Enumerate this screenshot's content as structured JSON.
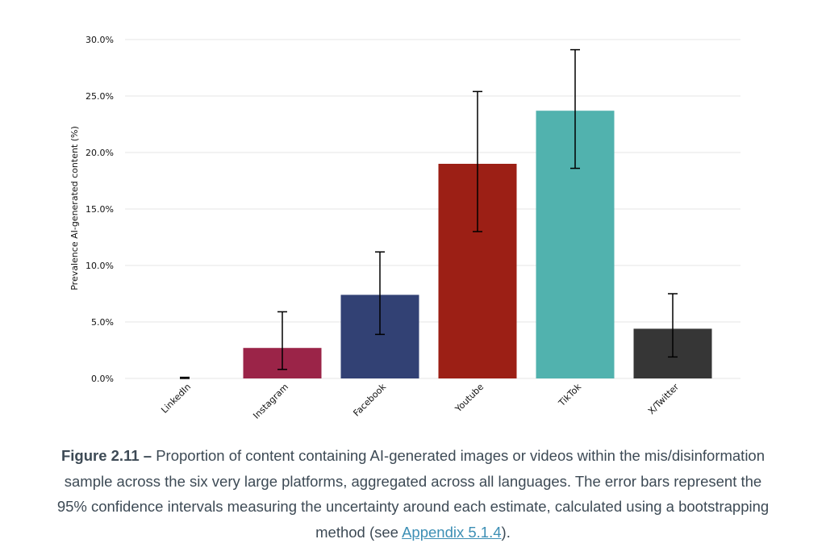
{
  "chart_data": {
    "type": "bar",
    "categories": [
      "LinkedIn",
      "Instagram",
      "Facebook",
      "Youtube",
      "TikTok",
      "X/Twitter"
    ],
    "values": [
      0.0,
      2.7,
      7.4,
      19.0,
      23.7,
      4.4
    ],
    "error_low": [
      0.0,
      0.8,
      3.9,
      13.0,
      18.6,
      1.9
    ],
    "error_high": [
      0.1,
      5.9,
      11.2,
      25.4,
      29.1,
      7.5
    ],
    "colors": [
      "#9b2448",
      "#9b2448",
      "#324174",
      "#9c1f15",
      "#51b2ae",
      "#363636"
    ],
    "ylabel": "Prevalence AI-generated content (%)",
    "ylim": [
      0,
      30
    ],
    "yticks": [
      0,
      5,
      10,
      15,
      20,
      25,
      30
    ],
    "ytick_labels": [
      "0.0%",
      "5.0%",
      "10.0%",
      "15.0%",
      "20.0%",
      "25.0%",
      "30.0%"
    ],
    "grid": true,
    "grid_color": "#e6e6e6"
  },
  "caption": {
    "label": "Figure 2.11 –",
    "text": " Proportion of content containing AI-generated images or videos within the mis/disinformation sample across the six very large platforms, aggregated across all languages. The error bars represent the 95% confidence intervals measuring the uncertainty around each estimate, calculated using a bootstrapping method (see ",
    "link": "Appendix 5.1.4",
    "tail": ")."
  }
}
